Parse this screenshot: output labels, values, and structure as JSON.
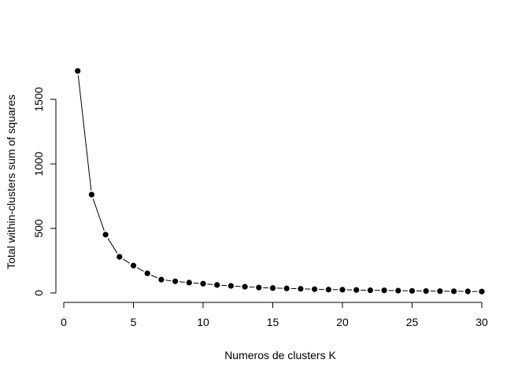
{
  "chart_data": {
    "type": "line",
    "title": "",
    "xlabel": "Numeros de clusters K",
    "ylabel": "Total within-clusters sum of squares",
    "xlim": [
      1,
      30
    ],
    "ylim": [
      0,
      1720
    ],
    "x_ticks": [
      0,
      5,
      10,
      15,
      20,
      25,
      30
    ],
    "y_ticks": [
      0,
      500,
      1000,
      1500
    ],
    "x_tick_labels": [
      "0",
      "5",
      "10",
      "15",
      "20",
      "25",
      "30"
    ],
    "y_tick_labels": [
      "0",
      "500",
      "1000",
      "1500"
    ],
    "grid": false,
    "legend": "none",
    "marker": "filled-circle",
    "line_style": "solid line broken around points (type b)",
    "color": "#000000",
    "series": [
      {
        "x": [
          1,
          2,
          3,
          4,
          5,
          6,
          7,
          8,
          9,
          10,
          11,
          12,
          13,
          14,
          15,
          16,
          17,
          18,
          19,
          20,
          21,
          22,
          23,
          24,
          25,
          26,
          27,
          28,
          29,
          30
        ],
        "values": [
          1720,
          762,
          452,
          280,
          212,
          152,
          103,
          90,
          80,
          72,
          62,
          55,
          48,
          42,
          38,
          35,
          32,
          29,
          26,
          25,
          23,
          21,
          20,
          18,
          16,
          15,
          14,
          13,
          12,
          11
        ]
      }
    ]
  }
}
